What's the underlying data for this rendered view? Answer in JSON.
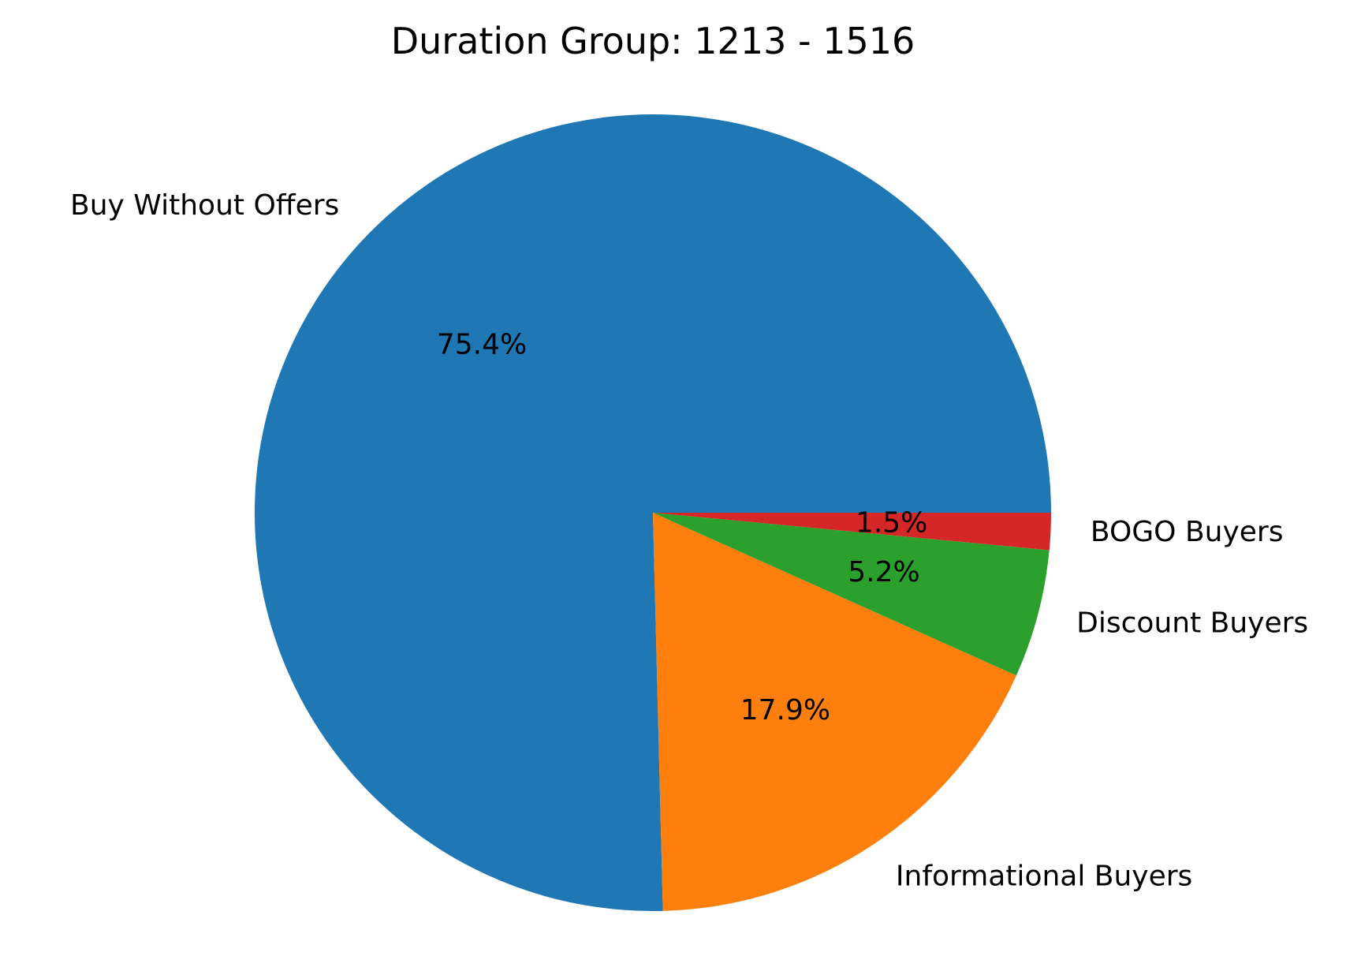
{
  "chart_data": {
    "type": "pie",
    "title": "Duration Group: 1213 - 1516",
    "slices": [
      {
        "label": "Buy Without Offers",
        "value": 75.4,
        "pct_label": "75.4%",
        "color": "#1f77b4"
      },
      {
        "label": "Informational Buyers",
        "value": 17.9,
        "pct_label": "17.9%",
        "color": "#ff7f0e"
      },
      {
        "label": "Discount Buyers",
        "value": 5.2,
        "pct_label": "5.2%",
        "color": "#2ca02c"
      },
      {
        "label": "BOGO Buyers",
        "value": 1.5,
        "pct_label": "1.5%",
        "color": "#d62728"
      }
    ],
    "start_angle_deg": 0,
    "direction": "counterclockwise",
    "legend": "none"
  }
}
